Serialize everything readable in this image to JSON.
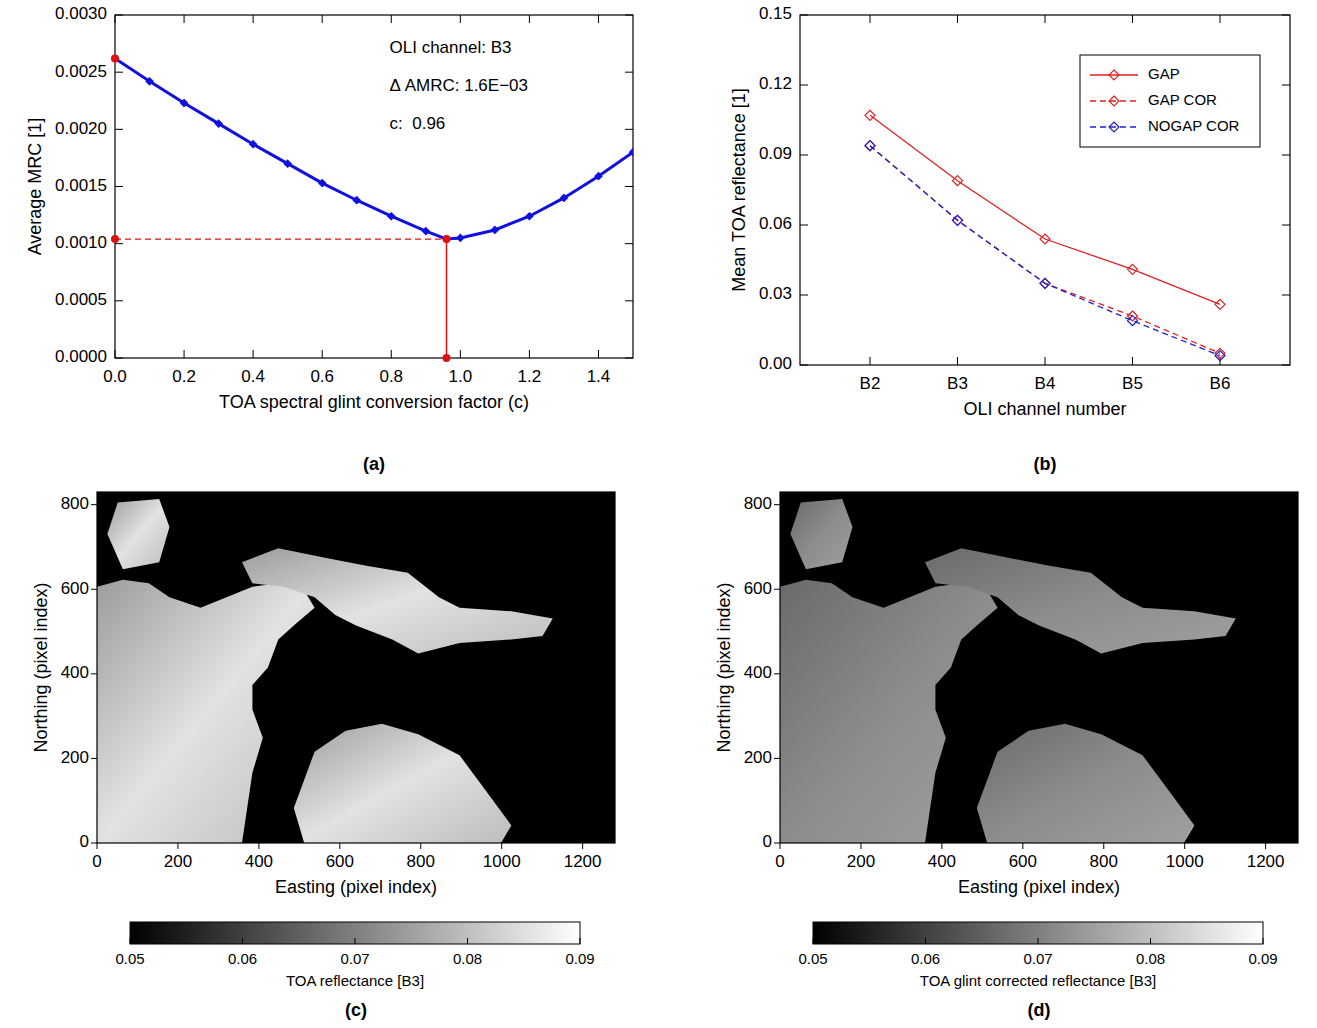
{
  "chart_data": [
    {
      "type": "line",
      "label": "(a)",
      "x_label": "TOA spectral glint conversion factor (c)",
      "y_label": "Average MRC [1]",
      "xlim": [
        0,
        1.5
      ],
      "ylim": [
        0,
        0.003
      ],
      "xticks": [
        {
          "value": 0,
          "label": "0.0"
        },
        0.2,
        0.4,
        0.6,
        0.8,
        {
          "value": 1,
          "label": "1.0"
        },
        1.2,
        1.4
      ],
      "yticks": [
        {
          "value": 0,
          "label": "0.0000"
        },
        {
          "value": 0.0005,
          "label": "0.0005"
        },
        {
          "value": 0.001,
          "label": "0.0010"
        },
        {
          "value": 0.0015,
          "label": "0.0015"
        },
        {
          "value": 0.002,
          "label": "0.0020"
        },
        {
          "value": 0.0025,
          "label": "0.0025"
        },
        {
          "value": 0.003,
          "label": "0.0030"
        }
      ],
      "x": [
        0,
        0.1,
        0.2,
        0.3,
        0.4,
        0.5,
        0.6,
        0.7,
        0.8,
        0.9,
        0.96,
        1.0,
        1.1,
        1.2,
        1.3,
        1.4,
        1.5
      ],
      "series": [
        {
          "color": "#1010e0",
          "marker": "diamond",
          "line_style": "solid",
          "values": [
            0.00262,
            0.00242,
            0.00223,
            0.00205,
            0.00187,
            0.0017,
            0.00153,
            0.00138,
            0.00124,
            0.00111,
            0.00104,
            0.00105,
            0.00112,
            0.00124,
            0.0014,
            0.00159,
            0.0018
          ]
        }
      ],
      "highlight": {
        "color": "#e01010",
        "x": [
          0,
          0,
          0.96,
          0.96
        ],
        "values": [
          0.00262,
          0.00104,
          0.00104,
          0
        ]
      },
      "annotations": [
        "OLI channel: B3",
        "Δ AMRC: 1.6E−03",
        "c:  0.96"
      ]
    },
    {
      "type": "line",
      "label": "(b)",
      "x_label": "OLI channel number",
      "y_label": "Mean TOA reflectance [1]",
      "categories": [
        "B2",
        "B3",
        "B4",
        "B5",
        "B6"
      ],
      "ylim": [
        0,
        0.15
      ],
      "yticks": [
        {
          "value": 0,
          "label": "0.00"
        },
        0.03,
        0.06,
        0.09,
        0.12,
        0.15
      ],
      "legend": "top right",
      "series": [
        {
          "name": "GAP",
          "color": "#e02020",
          "marker": "diamond",
          "line_style": "solid",
          "values": [
            0.107,
            0.079,
            0.054,
            0.041,
            0.026
          ]
        },
        {
          "name": "GAP COR",
          "color": "#e02020",
          "marker": "diamond",
          "line_style": "dashed",
          "values": [
            0.094,
            0.062,
            0.035,
            0.021,
            0.005
          ]
        },
        {
          "name": "NOGAP COR",
          "color": "#2020d0",
          "marker": "diamond",
          "line_style": "dashed",
          "values": [
            0.094,
            0.062,
            0.035,
            0.019,
            0.004
          ]
        }
      ]
    },
    {
      "type": "image",
      "label": "(c)",
      "x_label": "Easting (pixel index)",
      "y_label": "Northing (pixel index)",
      "xlim": [
        0,
        1280
      ],
      "ylim": [
        0,
        830
      ],
      "xticks": [
        0,
        200,
        400,
        600,
        800,
        1000,
        1200
      ],
      "yticks": [
        0,
        200,
        400,
        600,
        800
      ],
      "colorbar": {
        "label": "TOA reflectance [B3]",
        "range": [
          0.05,
          0.09
        ],
        "ticks": [
          0.05,
          0.06,
          0.07,
          0.08,
          0.09
        ]
      }
    },
    {
      "type": "image",
      "label": "(d)",
      "x_label": "Easting (pixel index)",
      "y_label": "Northing (pixel index)",
      "xlim": [
        0,
        1280
      ],
      "ylim": [
        0,
        830
      ],
      "xticks": [
        0,
        200,
        400,
        600,
        800,
        1000,
        1200
      ],
      "yticks": [
        0,
        200,
        400,
        600,
        800
      ],
      "colorbar": {
        "label": "TOA glint corrected reflectance [B3]",
        "range": [
          0.05,
          0.09
        ],
        "ticks": [
          0.05,
          0.06,
          0.07,
          0.08,
          0.09
        ]
      }
    }
  ]
}
